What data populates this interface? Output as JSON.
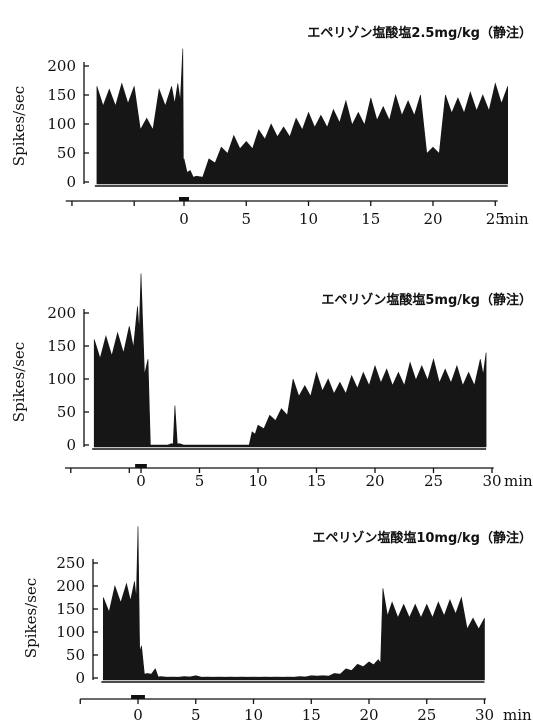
{
  "chart_data": [
    {
      "type": "area",
      "title": "エペリゾン塩酸塩2.5mg/kg（静注）",
      "ylabel": "Spikes/sec",
      "xlabel": "min",
      "yticks": [
        0,
        50,
        100,
        150,
        200
      ],
      "xticks": [
        0,
        5,
        10,
        15,
        20,
        25
      ],
      "ylim": [
        0,
        200
      ],
      "xlim": [
        -9.5,
        26
      ],
      "injection": {
        "start": -0.4,
        "end": 0.4
      },
      "series": [
        {
          "x": [
            -7,
            -6,
            -5,
            -4,
            -3,
            -2,
            -1,
            -0.5,
            -0.1,
            0,
            0.5,
            1,
            2,
            3,
            4,
            5,
            6,
            7,
            8,
            9,
            10,
            11,
            12,
            13,
            14,
            15,
            16,
            17,
            18,
            19,
            20,
            21,
            22,
            23,
            24,
            25,
            26
          ],
          "y": [
            165,
            160,
            170,
            165,
            110,
            160,
            165,
            170,
            230,
            40,
            20,
            10,
            40,
            60,
            80,
            70,
            90,
            100,
            95,
            110,
            120,
            115,
            125,
            140,
            120,
            145,
            130,
            150,
            140,
            150,
            60,
            150,
            145,
            155,
            150,
            170,
            165
          ]
        }
      ]
    },
    {
      "type": "area",
      "title": "エペリゾン塩酸塩5mg/kg（静注）",
      "ylabel": "Spikes/sec",
      "xlabel": "min",
      "yticks": [
        0,
        50,
        100,
        150,
        200
      ],
      "xticks": [
        0,
        5,
        10,
        15,
        20,
        25,
        30
      ],
      "ylim": [
        0,
        200
      ],
      "xlim": [
        -6.5,
        31
      ],
      "injection": {
        "start": -0.5,
        "end": 0.5
      },
      "series": [
        {
          "x": [
            -4,
            -3,
            -2,
            -1,
            -0.3,
            0,
            0.6,
            1,
            1.5,
            2,
            2.6,
            2.9,
            3.3,
            4,
            5,
            6,
            7,
            8,
            9,
            9.5,
            10,
            11,
            12,
            13,
            14,
            15,
            16,
            17,
            18,
            19,
            20,
            21,
            22,
            23,
            24,
            25,
            26,
            27,
            28,
            29,
            29.5
          ],
          "y": [
            160,
            165,
            170,
            180,
            210,
            260,
            130,
            0,
            0,
            0,
            2,
            60,
            2,
            0,
            0,
            0,
            0,
            0,
            0,
            20,
            30,
            45,
            55,
            100,
            90,
            110,
            100,
            95,
            105,
            110,
            120,
            115,
            110,
            125,
            120,
            130,
            115,
            120,
            110,
            130,
            140
          ]
        }
      ]
    },
    {
      "type": "area",
      "title": "エペリゾン塩酸塩10mg/kg（静注）",
      "ylabel": "Spikes/sec",
      "xlabel": "min",
      "yticks": [
        0,
        50,
        100,
        150,
        200,
        250
      ],
      "xticks": [
        0,
        5,
        10,
        15,
        20,
        25,
        30
      ],
      "ylim": [
        0,
        250
      ],
      "xlim": [
        -5,
        31
      ],
      "injection": {
        "start": -0.6,
        "end": 0.6
      },
      "series": [
        {
          "x": [
            -3,
            -2,
            -1,
            -0.3,
            0,
            0.3,
            0.8,
            1.5,
            2,
            3,
            4,
            5,
            6,
            7,
            8,
            9,
            10,
            11,
            12,
            13,
            14,
            15,
            16,
            17,
            18,
            19,
            20,
            20.8,
            21.2,
            22,
            23,
            24,
            25,
            26,
            27,
            28,
            29,
            30
          ],
          "y": [
            175,
            200,
            205,
            210,
            330,
            70,
            10,
            20,
            3,
            2,
            3,
            5,
            2,
            2,
            2,
            2,
            2,
            2,
            2,
            2,
            3,
            5,
            5,
            10,
            20,
            30,
            35,
            40,
            195,
            165,
            160,
            160,
            160,
            165,
            170,
            175,
            130,
            130
          ]
        }
      ]
    }
  ]
}
